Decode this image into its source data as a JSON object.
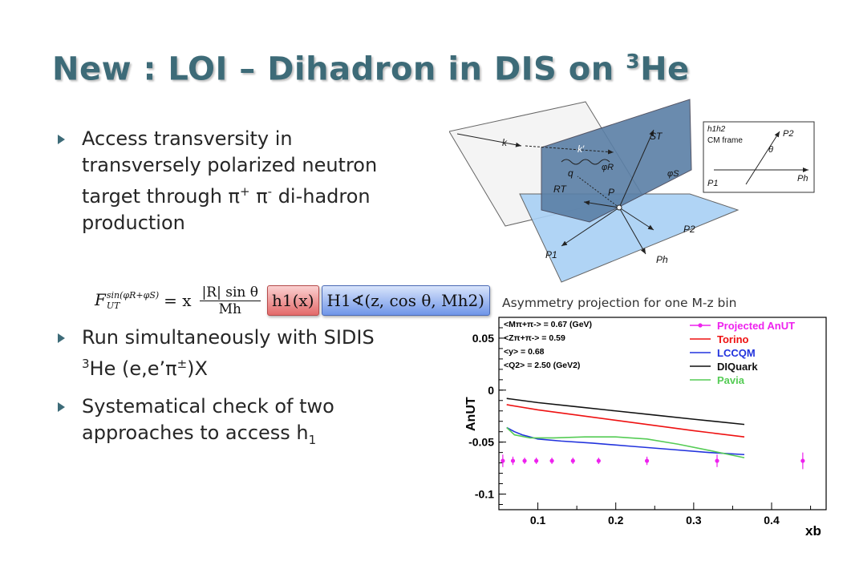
{
  "title": {
    "main": "New : LOI – Dihadron in DIS on ",
    "sup": "3",
    "tail": "He"
  },
  "bullets": [
    {
      "text": "Access transversity in transversely polarized neutron target through π",
      "sup1": "+",
      "mid": " π",
      "sup2": "-",
      "tail": " di-hadron production"
    },
    {
      "text": "Run simultaneously with SIDIS ",
      "sup1": "3",
      "mid": "He (e,e’π",
      "sup2": "±",
      "tail": ")X"
    },
    {
      "text": "Systematical check of two approaches to access h",
      "sub": "1"
    }
  ],
  "formula": {
    "lhs": "F",
    "lhs_sup": "sin(φR+φS)",
    "lhs_sub": "UT",
    "eq": "= x",
    "num": "|R| sin θ",
    "den": "Mh",
    "h1": "h1(x)",
    "H1": "H1∢(z, cos θ, Mh2)"
  },
  "diagram": {
    "labels": [
      "k",
      "k′",
      "q",
      "φR",
      "ST",
      "φS",
      "RT",
      "P",
      "P2",
      "P1",
      "Ph"
    ],
    "inset": {
      "frame": "h1h2",
      "frame_label": "CM frame",
      "labels": [
        "P2",
        "θ",
        "Ph",
        "P1"
      ]
    }
  },
  "caption": "Asymmetry projection for one M-z bin",
  "chart_data": {
    "type": "line",
    "xlabel": "xb",
    "ylabel": "AnUT",
    "x_ticks": [
      "0.1",
      "0.2",
      "0.3",
      "0.4"
    ],
    "y_ticks": [
      "0.05",
      "0",
      "-0.05",
      "-0.1"
    ],
    "xlim": [
      0.05,
      0.47
    ],
    "ylim": [
      -0.115,
      0.07
    ],
    "kinematics": [
      "<Mπ+π-> = 0.67 (GeV)",
      "<Zπ+π-> = 0.59",
      "<y> = 0.68",
      "<Q2> = 2.50 (GeV2)"
    ],
    "series": [
      {
        "name": "Projected AnUT",
        "color": "#ee22ee",
        "kind": "points",
        "x": [
          0.055,
          0.068,
          0.083,
          0.098,
          0.118,
          0.145,
          0.178,
          0.24,
          0.33,
          0.44
        ],
        "y": [
          -0.068,
          -0.068,
          -0.068,
          -0.068,
          -0.068,
          -0.068,
          -0.068,
          -0.068,
          -0.068,
          -0.068
        ],
        "err": [
          0.006,
          0.004,
          0.003,
          0.003,
          0.003,
          0.003,
          0.003,
          0.004,
          0.006,
          0.008
        ]
      },
      {
        "name": "Torino",
        "color": "#ee1111",
        "kind": "line",
        "x": [
          0.06,
          0.1,
          0.15,
          0.2,
          0.25,
          0.3,
          0.365
        ],
        "y": [
          -0.014,
          -0.019,
          -0.024,
          -0.029,
          -0.034,
          -0.039,
          -0.045
        ]
      },
      {
        "name": "LCCQM",
        "color": "#2233dd",
        "kind": "line",
        "x": [
          0.06,
          0.07,
          0.08,
          0.1,
          0.13,
          0.17,
          0.22,
          0.27,
          0.32,
          0.365
        ],
        "y": [
          -0.036,
          -0.04,
          -0.043,
          -0.047,
          -0.049,
          -0.051,
          -0.054,
          -0.057,
          -0.06,
          -0.062
        ]
      },
      {
        "name": "DIQuark",
        "color": "#111111",
        "kind": "line",
        "x": [
          0.06,
          0.1,
          0.15,
          0.2,
          0.25,
          0.3,
          0.365
        ],
        "y": [
          -0.008,
          -0.012,
          -0.016,
          -0.02,
          -0.024,
          -0.028,
          -0.033
        ]
      },
      {
        "name": "Pavia",
        "color": "#55cc55",
        "kind": "line",
        "x": [
          0.06,
          0.07,
          0.09,
          0.12,
          0.16,
          0.2,
          0.24,
          0.28,
          0.32,
          0.365
        ],
        "y": [
          -0.036,
          -0.043,
          -0.046,
          -0.046,
          -0.045,
          -0.045,
          -0.047,
          -0.052,
          -0.058,
          -0.065
        ]
      }
    ]
  }
}
